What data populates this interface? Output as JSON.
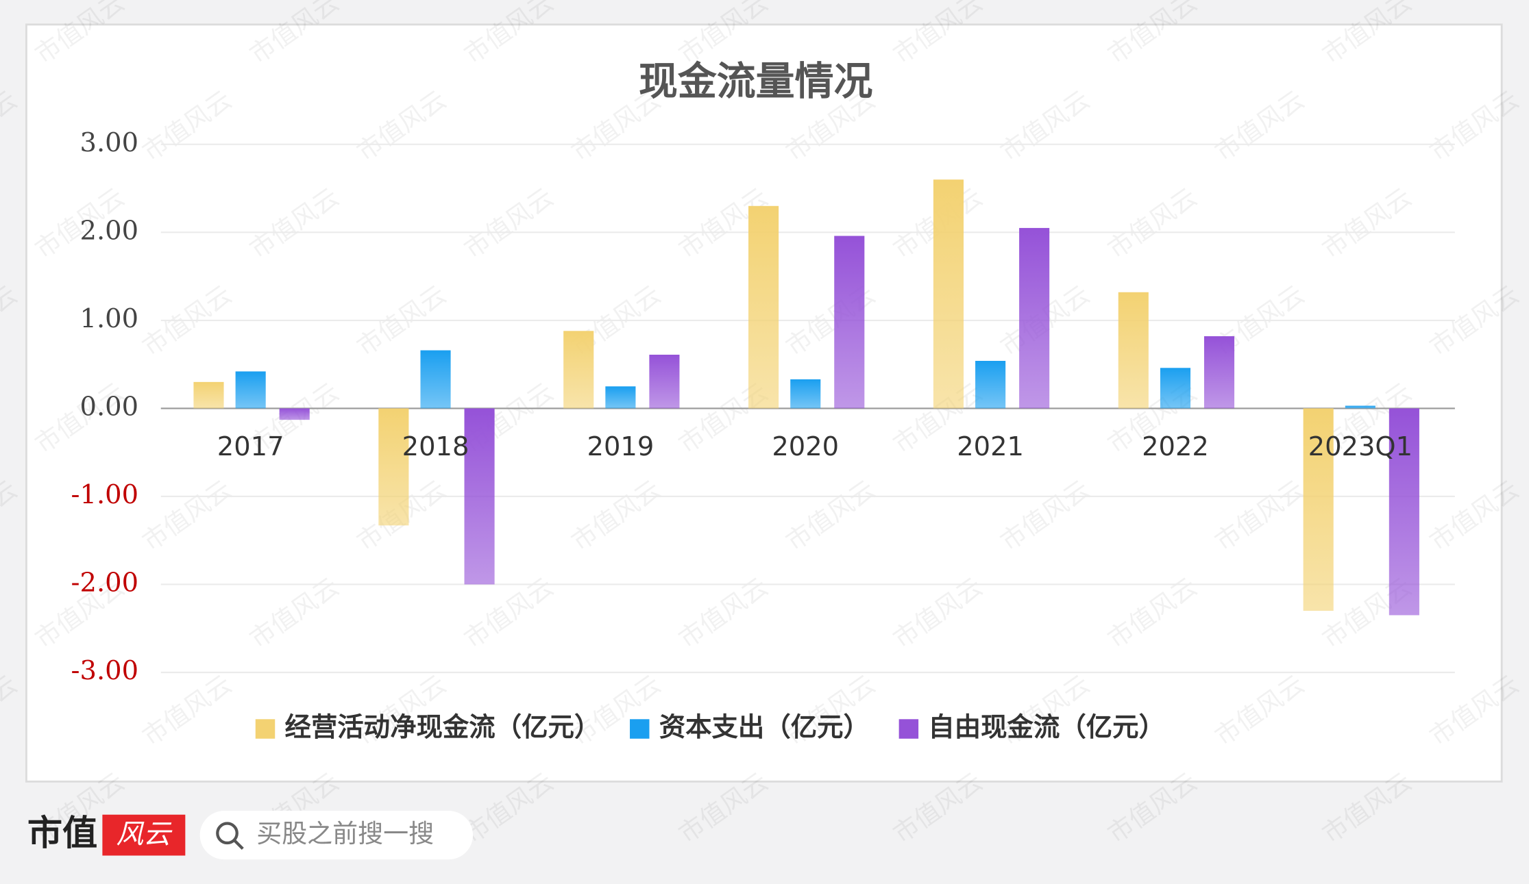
{
  "chart_data": {
    "type": "bar",
    "title": "现金流量情况",
    "categories": [
      "2017",
      "2018",
      "2019",
      "2020",
      "2021",
      "2022",
      "2023Q1"
    ],
    "series": [
      {
        "name": "经营活动净现金流（亿元）",
        "color": "#f3d272",
        "values": [
          0.3,
          -1.33,
          0.88,
          2.3,
          2.6,
          1.32,
          -2.3
        ]
      },
      {
        "name": "资本支出（亿元）",
        "color": "#1a9ff0",
        "values": [
          0.42,
          0.66,
          0.25,
          0.33,
          0.54,
          0.46,
          0.03
        ]
      },
      {
        "name": "自由现金流（亿元）",
        "color": "#9552d8",
        "values": [
          -0.13,
          -2.0,
          0.61,
          1.96,
          2.05,
          0.82,
          -2.35
        ]
      }
    ],
    "ylim": [
      -3,
      3
    ],
    "yticks": [
      {
        "value": 3,
        "label": "3.00"
      },
      {
        "value": 2,
        "label": "2.00"
      },
      {
        "value": 1,
        "label": "1.00"
      },
      {
        "value": 0,
        "label": "0.00"
      },
      {
        "value": -1,
        "label": "-1.00"
      },
      {
        "value": -2,
        "label": "-2.00"
      },
      {
        "value": -3,
        "label": "-3.00"
      }
    ],
    "negative_tick_color": "#c00000",
    "grid": true
  },
  "footer": {
    "logo": "市值",
    "logo_mark": "风云",
    "search_placeholder": "买股之前搜一搜"
  },
  "watermark": "市值风云"
}
